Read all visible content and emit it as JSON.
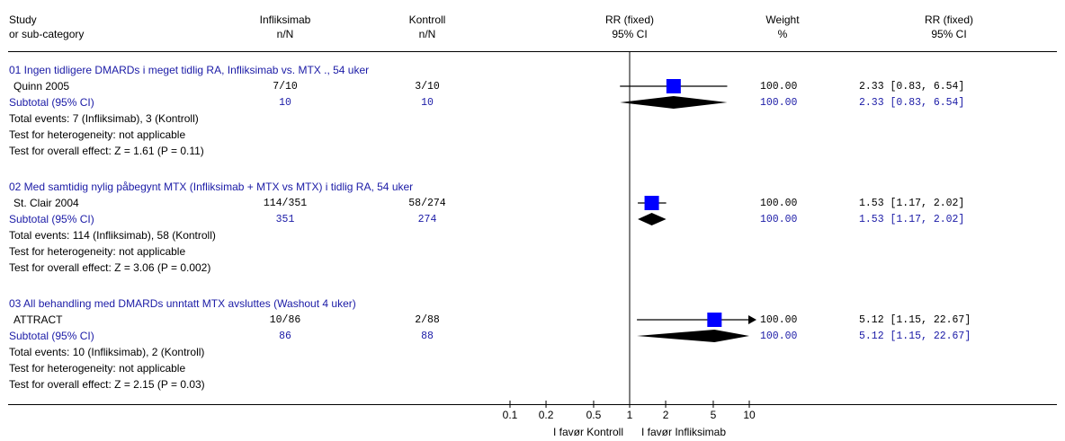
{
  "header": {
    "study": [
      "Study",
      "or sub-category"
    ],
    "infliksimab": [
      "Infliksimab",
      "n/N"
    ],
    "kontroll": [
      "Kontroll",
      "n/N"
    ],
    "rr_plot": [
      "RR (fixed)",
      "95% CI"
    ],
    "weight": [
      "Weight",
      "%"
    ],
    "rr_text": [
      "RR (fixed)",
      "95% CI"
    ]
  },
  "groups": [
    {
      "title": "01 Ingen tidligere DMARDs i meget tidlig RA, Infliksimab vs. MTX ., 54 uker",
      "study": {
        "name": "Quinn 2005",
        "treat": "7/10",
        "ctrl": "3/10",
        "weight": "100.00",
        "ci": "2.33 [0.83, 6.54]"
      },
      "subtotal": {
        "label": "Subtotal (95% CI)",
        "treat": "10",
        "ctrl": "10",
        "weight": "100.00",
        "ci": "2.33 [0.83, 6.54]"
      },
      "total_events": "Total events: 7 (Infliksimab), 3 (Kontroll)",
      "heterogeneity": "Test for heterogeneity: not applicable",
      "overall": "Test for overall effect: Z = 1.61 (P = 0.11)"
    },
    {
      "title": "02 Med samtidig nylig påbegynt MTX (Infliksimab + MTX vs MTX) i tidlig RA, 54 uker",
      "study": {
        "name": "St. Clair 2004",
        "treat": "114/351",
        "ctrl": "58/274",
        "weight": "100.00",
        "ci": "1.53 [1.17, 2.02]"
      },
      "subtotal": {
        "label": "Subtotal (95% CI)",
        "treat": "351",
        "ctrl": "274",
        "weight": "100.00",
        "ci": "1.53 [1.17, 2.02]"
      },
      "total_events": "Total events: 114 (Infliksimab), 58 (Kontroll)",
      "heterogeneity": "Test for heterogeneity: not applicable",
      "overall": "Test for overall effect: Z = 3.06 (P = 0.002)"
    },
    {
      "title": "03 All behandling med DMARDs unntatt MTX avsluttes (Washout 4 uker)",
      "study": {
        "name": "ATTRACT",
        "treat": "10/86",
        "ctrl": "2/88",
        "weight": "100.00",
        "ci": "5.12 [1.15, 22.67]"
      },
      "subtotal": {
        "label": "Subtotal (95% CI)",
        "treat": "86",
        "ctrl": "88",
        "weight": "100.00",
        "ci": "5.12 [1.15, 22.67]"
      },
      "total_events": "Total events: 10 (Infliksimab), 2 (Kontroll)",
      "heterogeneity": "Test for heterogeneity: not applicable",
      "overall": "Test for overall effect: Z = 2.15 (P = 0.03)"
    }
  ],
  "favors": {
    "left": "I favør Kontroll",
    "right": "I favør Infliksimab"
  },
  "chart_data": {
    "type": "forest",
    "scale": "log",
    "xlim": [
      0.1,
      10
    ],
    "ticks": [
      0.1,
      0.2,
      0.5,
      1,
      2,
      5,
      10
    ],
    "tick_labels": [
      "0.1",
      "0.2",
      "0.5",
      "1",
      "2",
      "5",
      "10"
    ],
    "null_value": 1,
    "series": [
      {
        "name": "Quinn 2005",
        "kind": "study",
        "rr": 2.33,
        "lo": 0.83,
        "hi": 6.54
      },
      {
        "name": "Subtotal (95% CI)",
        "kind": "diamond",
        "rr": 2.33,
        "lo": 0.83,
        "hi": 6.54
      },
      {
        "name": "St. Clair 2004",
        "kind": "study",
        "rr": 1.53,
        "lo": 1.17,
        "hi": 2.02
      },
      {
        "name": "Subtotal (95% CI)",
        "kind": "diamond",
        "rr": 1.53,
        "lo": 1.17,
        "hi": 2.02
      },
      {
        "name": "ATTRACT",
        "kind": "study",
        "rr": 5.12,
        "lo": 1.15,
        "hi": 22.67
      },
      {
        "name": "Subtotal (95% CI)",
        "kind": "diamond",
        "rr": 5.12,
        "lo": 1.15,
        "hi": 22.67
      }
    ],
    "colors": {
      "box": "#0000ff",
      "diamond": "#000000",
      "line": "#000000"
    }
  }
}
